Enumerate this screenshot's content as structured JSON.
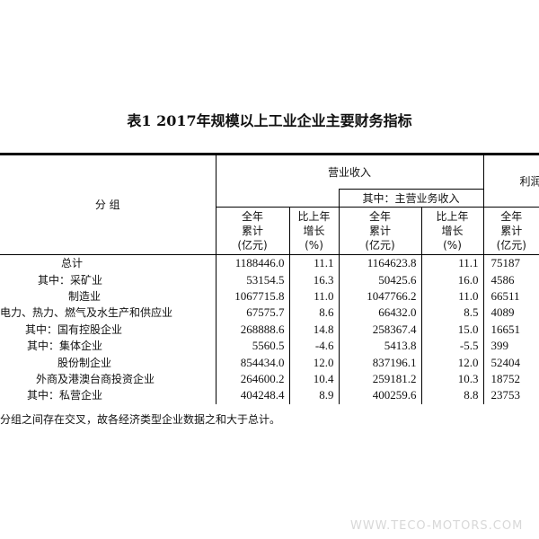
{
  "title": "表1  2017年规模以上工业企业主要财务指标",
  "header": {
    "group": "分  组",
    "revenue": "营业收入",
    "main_revenue": "其中：主营业务收入",
    "profit": "利润",
    "cols": [
      {
        "l1": "全年",
        "l2": "累计",
        "l3": "(亿元)"
      },
      {
        "l1": "比上年",
        "l2": "增长",
        "l3": "(%)"
      },
      {
        "l1": "全年",
        "l2": "累计",
        "l3": "(亿元)"
      },
      {
        "l1": "比上年",
        "l2": "增长",
        "l3": "(%)"
      },
      {
        "l1": "全年",
        "l2": "累计",
        "l3": "(亿元)"
      }
    ]
  },
  "rows": [
    {
      "label": "总计",
      "v": [
        "1188446.0",
        "11.1",
        "1164623.8",
        "11.1",
        "75187"
      ]
    },
    {
      "label": "其中：采矿业",
      "v": [
        "53154.5",
        "16.3",
        "50425.6",
        "16.0",
        "4586"
      ]
    },
    {
      "label": "制造业",
      "v": [
        "1067715.8",
        "11.0",
        "1047766.2",
        "11.0",
        "66511"
      ]
    },
    {
      "label": "电力、热力、燃气及水生产和供应业",
      "v": [
        "67575.7",
        "8.6",
        "66432.0",
        "8.5",
        "4089"
      ]
    },
    {
      "label": "其中：国有控股企业",
      "v": [
        "268888.6",
        "14.8",
        "258367.4",
        "15.0",
        "16651"
      ]
    },
    {
      "label": "其中：集体企业",
      "v": [
        "5560.5",
        "-4.6",
        "5413.8",
        "-5.5",
        "399"
      ]
    },
    {
      "label": "股份制企业",
      "v": [
        "854434.0",
        "12.0",
        "837196.1",
        "12.0",
        "52404"
      ]
    },
    {
      "label": "外商及港澳台商投资企业",
      "v": [
        "264600.2",
        "10.4",
        "259181.2",
        "10.3",
        "18752"
      ]
    },
    {
      "label": "其中：私营企业",
      "v": [
        "404248.4",
        "8.9",
        "400259.6",
        "8.8",
        "23753"
      ]
    }
  ],
  "note": "分组之间存在交叉，故各经济类型企业数据之和大于总计。",
  "watermark": "WWW.TECO-MOTORS.COM"
}
